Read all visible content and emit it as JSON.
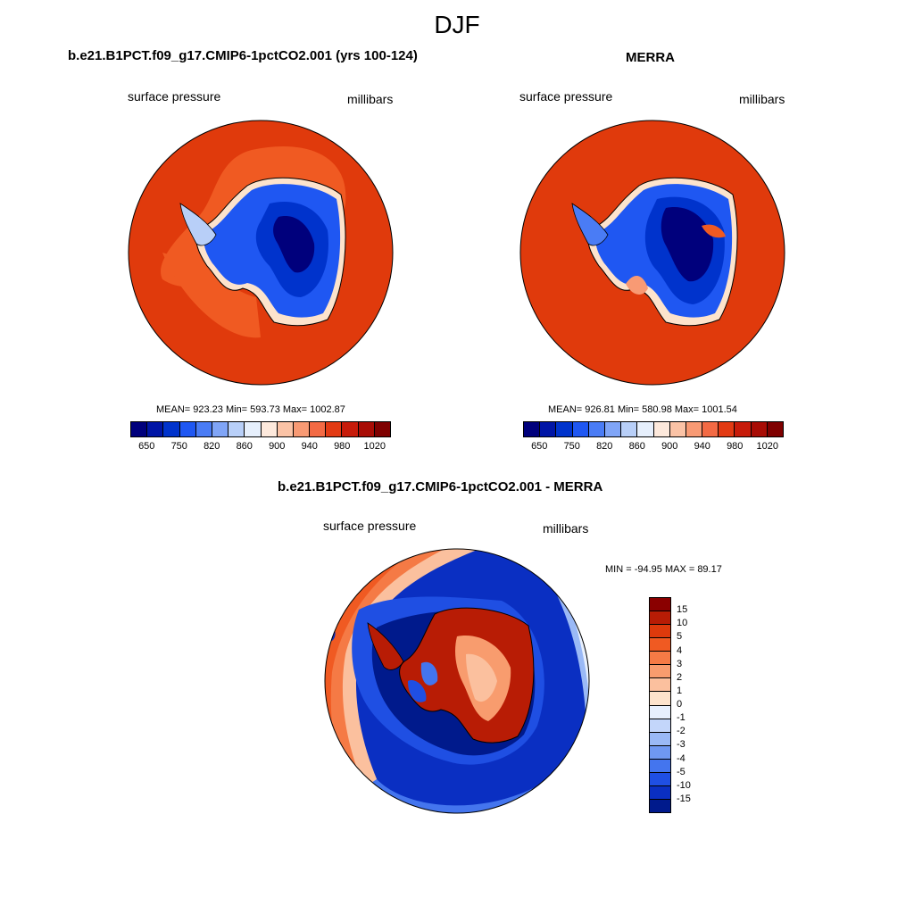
{
  "season": "DJF",
  "panels": [
    {
      "title": "b.e21.B1PCT.f09_g17.CMIP6-1pctCO2.001 (yrs 100-124)",
      "field": "surface pressure",
      "units": "millibars",
      "stats": "MEAN= 923.23  Min= 593.73  Max= 1002.87",
      "mean": 923.23,
      "min": 593.73,
      "max": 1002.87
    },
    {
      "title": "MERRA",
      "field": "surface pressure",
      "units": "millibars",
      "stats": "MEAN= 926.81  Min= 580.98  Max= 1001.54",
      "mean": 926.81,
      "min": 580.98,
      "max": 1001.54
    }
  ],
  "abs_colorbar": {
    "tick_labels": [
      "650",
      "750",
      "820",
      "860",
      "900",
      "940",
      "980",
      "1020"
    ],
    "colors": [
      "#00007c",
      "#0015a6",
      "#0033cc",
      "#1f57f2",
      "#4a7cf5",
      "#80a5f7",
      "#b8cff8",
      "#e6effc",
      "#fde9dc",
      "#fbc3a6",
      "#f89a74",
      "#f36a44",
      "#e23a13",
      "#c71b0a",
      "#a80c05",
      "#7f0000"
    ]
  },
  "diff": {
    "title": "b.e21.B1PCT.f09_g17.CMIP6-1pctCO2.001 - MERRA",
    "field": "surface pressure",
    "units": "millibars",
    "minmax": "MIN = -94.95 MAX =  89.17",
    "min": -94.95,
    "max": 89.17,
    "tick_labels": [
      "15",
      "10",
      "5",
      "4",
      "3",
      "2",
      "1",
      "0",
      "-1",
      "-2",
      "-3",
      "-4",
      "-5",
      "-10",
      "-15"
    ],
    "colors": [
      "#8a0000",
      "#b81c05",
      "#de3a0c",
      "#f05a22",
      "#f57a45",
      "#f89c6e",
      "#fbc09e",
      "#fde3cc",
      "#e8f0fd",
      "#c3d6fa",
      "#9ab9f6",
      "#6f98f2",
      "#4475ee",
      "#1f4fe3",
      "#0a2fc2",
      "#001a8c"
    ]
  }
}
